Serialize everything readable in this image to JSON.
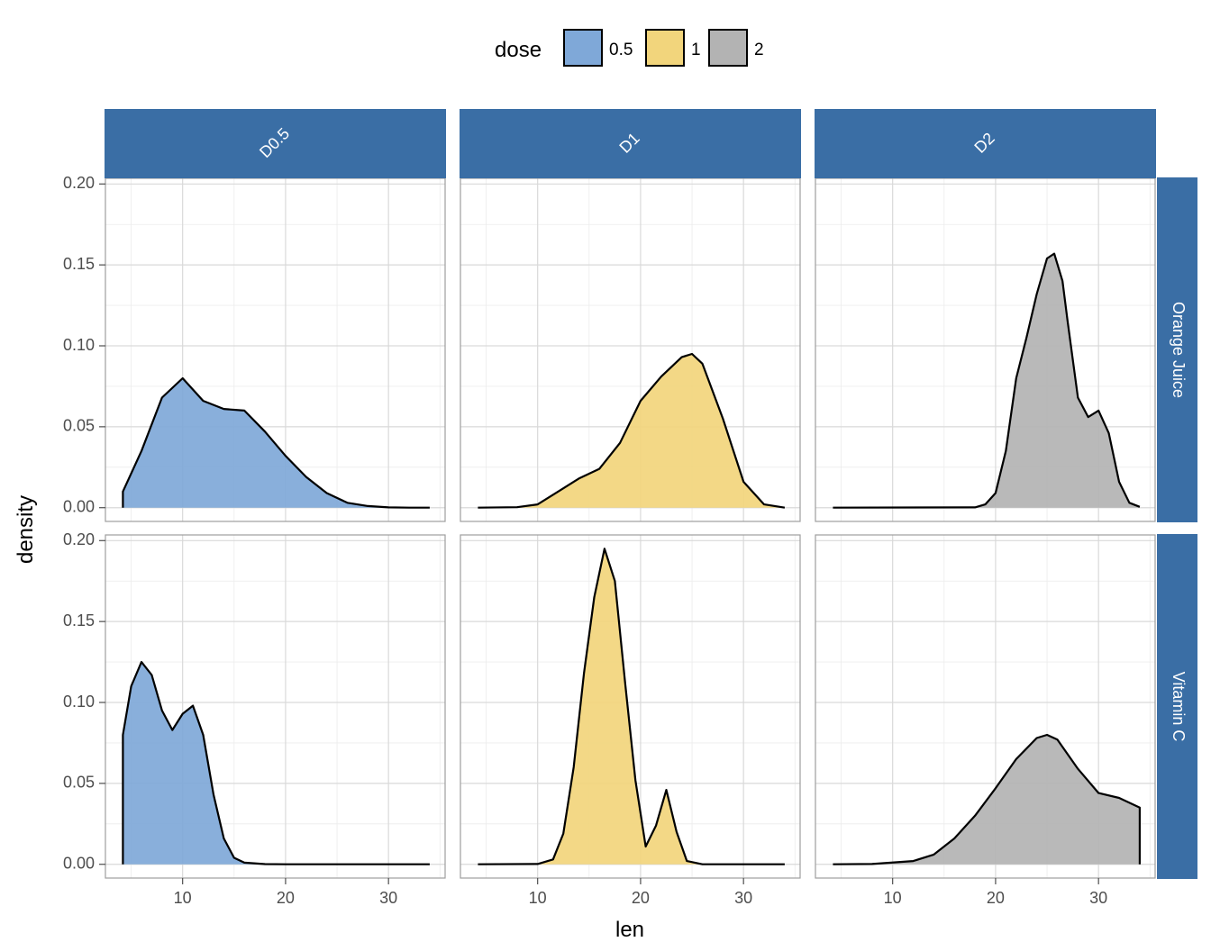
{
  "chart_data": {
    "type": "area",
    "subtype": "density",
    "xlabel": "len",
    "ylabel": "density",
    "x_ticks": [
      10,
      20,
      30
    ],
    "y_ticks": [
      0.0,
      0.05,
      0.1,
      0.15,
      0.2
    ],
    "y_tick_labels": [
      "0.00",
      "0.05",
      "0.10",
      "0.15",
      "0.20"
    ],
    "xlim": [
      2.5,
      35.5
    ],
    "ylim": [
      -0.0085,
      0.2035
    ],
    "grid": true,
    "legend": {
      "title": "dose",
      "position": "top",
      "entries": [
        {
          "label": "0.5",
          "color": "#7FA8D8"
        },
        {
          "label": "1",
          "color": "#F2D57C"
        },
        {
          "label": "2",
          "color": "#B3B3B3"
        }
      ]
    },
    "strip_color": "#3A6EA5",
    "col_facets": [
      "D0.5",
      "D1",
      "D2"
    ],
    "row_facets": [
      "Orange Juice",
      "Vitamin C"
    ],
    "panels": [
      {
        "row": 0,
        "col": 0,
        "color": "#7FA8D8",
        "x": [
          4.2,
          4.2,
          6,
          8,
          10,
          12,
          14,
          16,
          18,
          20,
          22,
          24,
          26,
          28,
          30,
          32,
          34
        ],
        "y": [
          0,
          0.01,
          0.035,
          0.068,
          0.08,
          0.066,
          0.061,
          0.06,
          0.047,
          0.032,
          0.019,
          0.009,
          0.003,
          0.001,
          0.0002,
          0,
          0
        ]
      },
      {
        "row": 0,
        "col": 1,
        "color": "#F2D57C",
        "x": [
          4.2,
          8,
          10,
          12,
          14,
          16,
          18,
          20,
          22,
          24,
          25,
          26,
          28,
          30,
          32,
          34
        ],
        "y": [
          0,
          0.0003,
          0.002,
          0.01,
          0.018,
          0.024,
          0.04,
          0.066,
          0.081,
          0.093,
          0.095,
          0.089,
          0.055,
          0.016,
          0.002,
          0
        ]
      },
      {
        "row": 0,
        "col": 2,
        "color": "#B3B3B3",
        "x": [
          4.2,
          18,
          19,
          20,
          21,
          22,
          23,
          24,
          25,
          25.7,
          26.5,
          27,
          28,
          29,
          30,
          31,
          32,
          33,
          34
        ],
        "y": [
          0,
          0.0002,
          0.002,
          0.009,
          0.035,
          0.08,
          0.105,
          0.132,
          0.154,
          0.157,
          0.14,
          0.115,
          0.068,
          0.056,
          0.06,
          0.046,
          0.016,
          0.003,
          0.0005
        ]
      },
      {
        "row": 1,
        "col": 0,
        "color": "#7FA8D8",
        "x": [
          4.2,
          4.2,
          5,
          6,
          7,
          8,
          9,
          10,
          11,
          12,
          13,
          14,
          15,
          16,
          18,
          20,
          34
        ],
        "y": [
          0,
          0.08,
          0.11,
          0.125,
          0.117,
          0.095,
          0.083,
          0.093,
          0.098,
          0.08,
          0.043,
          0.016,
          0.004,
          0.001,
          0.0001,
          0,
          0
        ]
      },
      {
        "row": 1,
        "col": 1,
        "color": "#F2D57C",
        "x": [
          4.2,
          10,
          11.5,
          12.5,
          13.5,
          14.5,
          15.5,
          16.5,
          17.5,
          18.5,
          19.5,
          20.5,
          21.5,
          22.5,
          23.5,
          24.5,
          26,
          34
        ],
        "y": [
          0,
          0.0002,
          0.003,
          0.019,
          0.06,
          0.118,
          0.165,
          0.195,
          0.175,
          0.112,
          0.052,
          0.011,
          0.024,
          0.046,
          0.02,
          0.002,
          0,
          0
        ]
      },
      {
        "row": 1,
        "col": 2,
        "color": "#B3B3B3",
        "x": [
          4.2,
          8,
          12,
          14,
          16,
          18,
          20,
          22,
          24,
          25,
          26,
          28,
          30,
          32,
          34,
          34
        ],
        "y": [
          0,
          0.0002,
          0.002,
          0.006,
          0.016,
          0.03,
          0.047,
          0.065,
          0.078,
          0.08,
          0.077,
          0.059,
          0.044,
          0.041,
          0.035,
          0
        ]
      }
    ]
  }
}
